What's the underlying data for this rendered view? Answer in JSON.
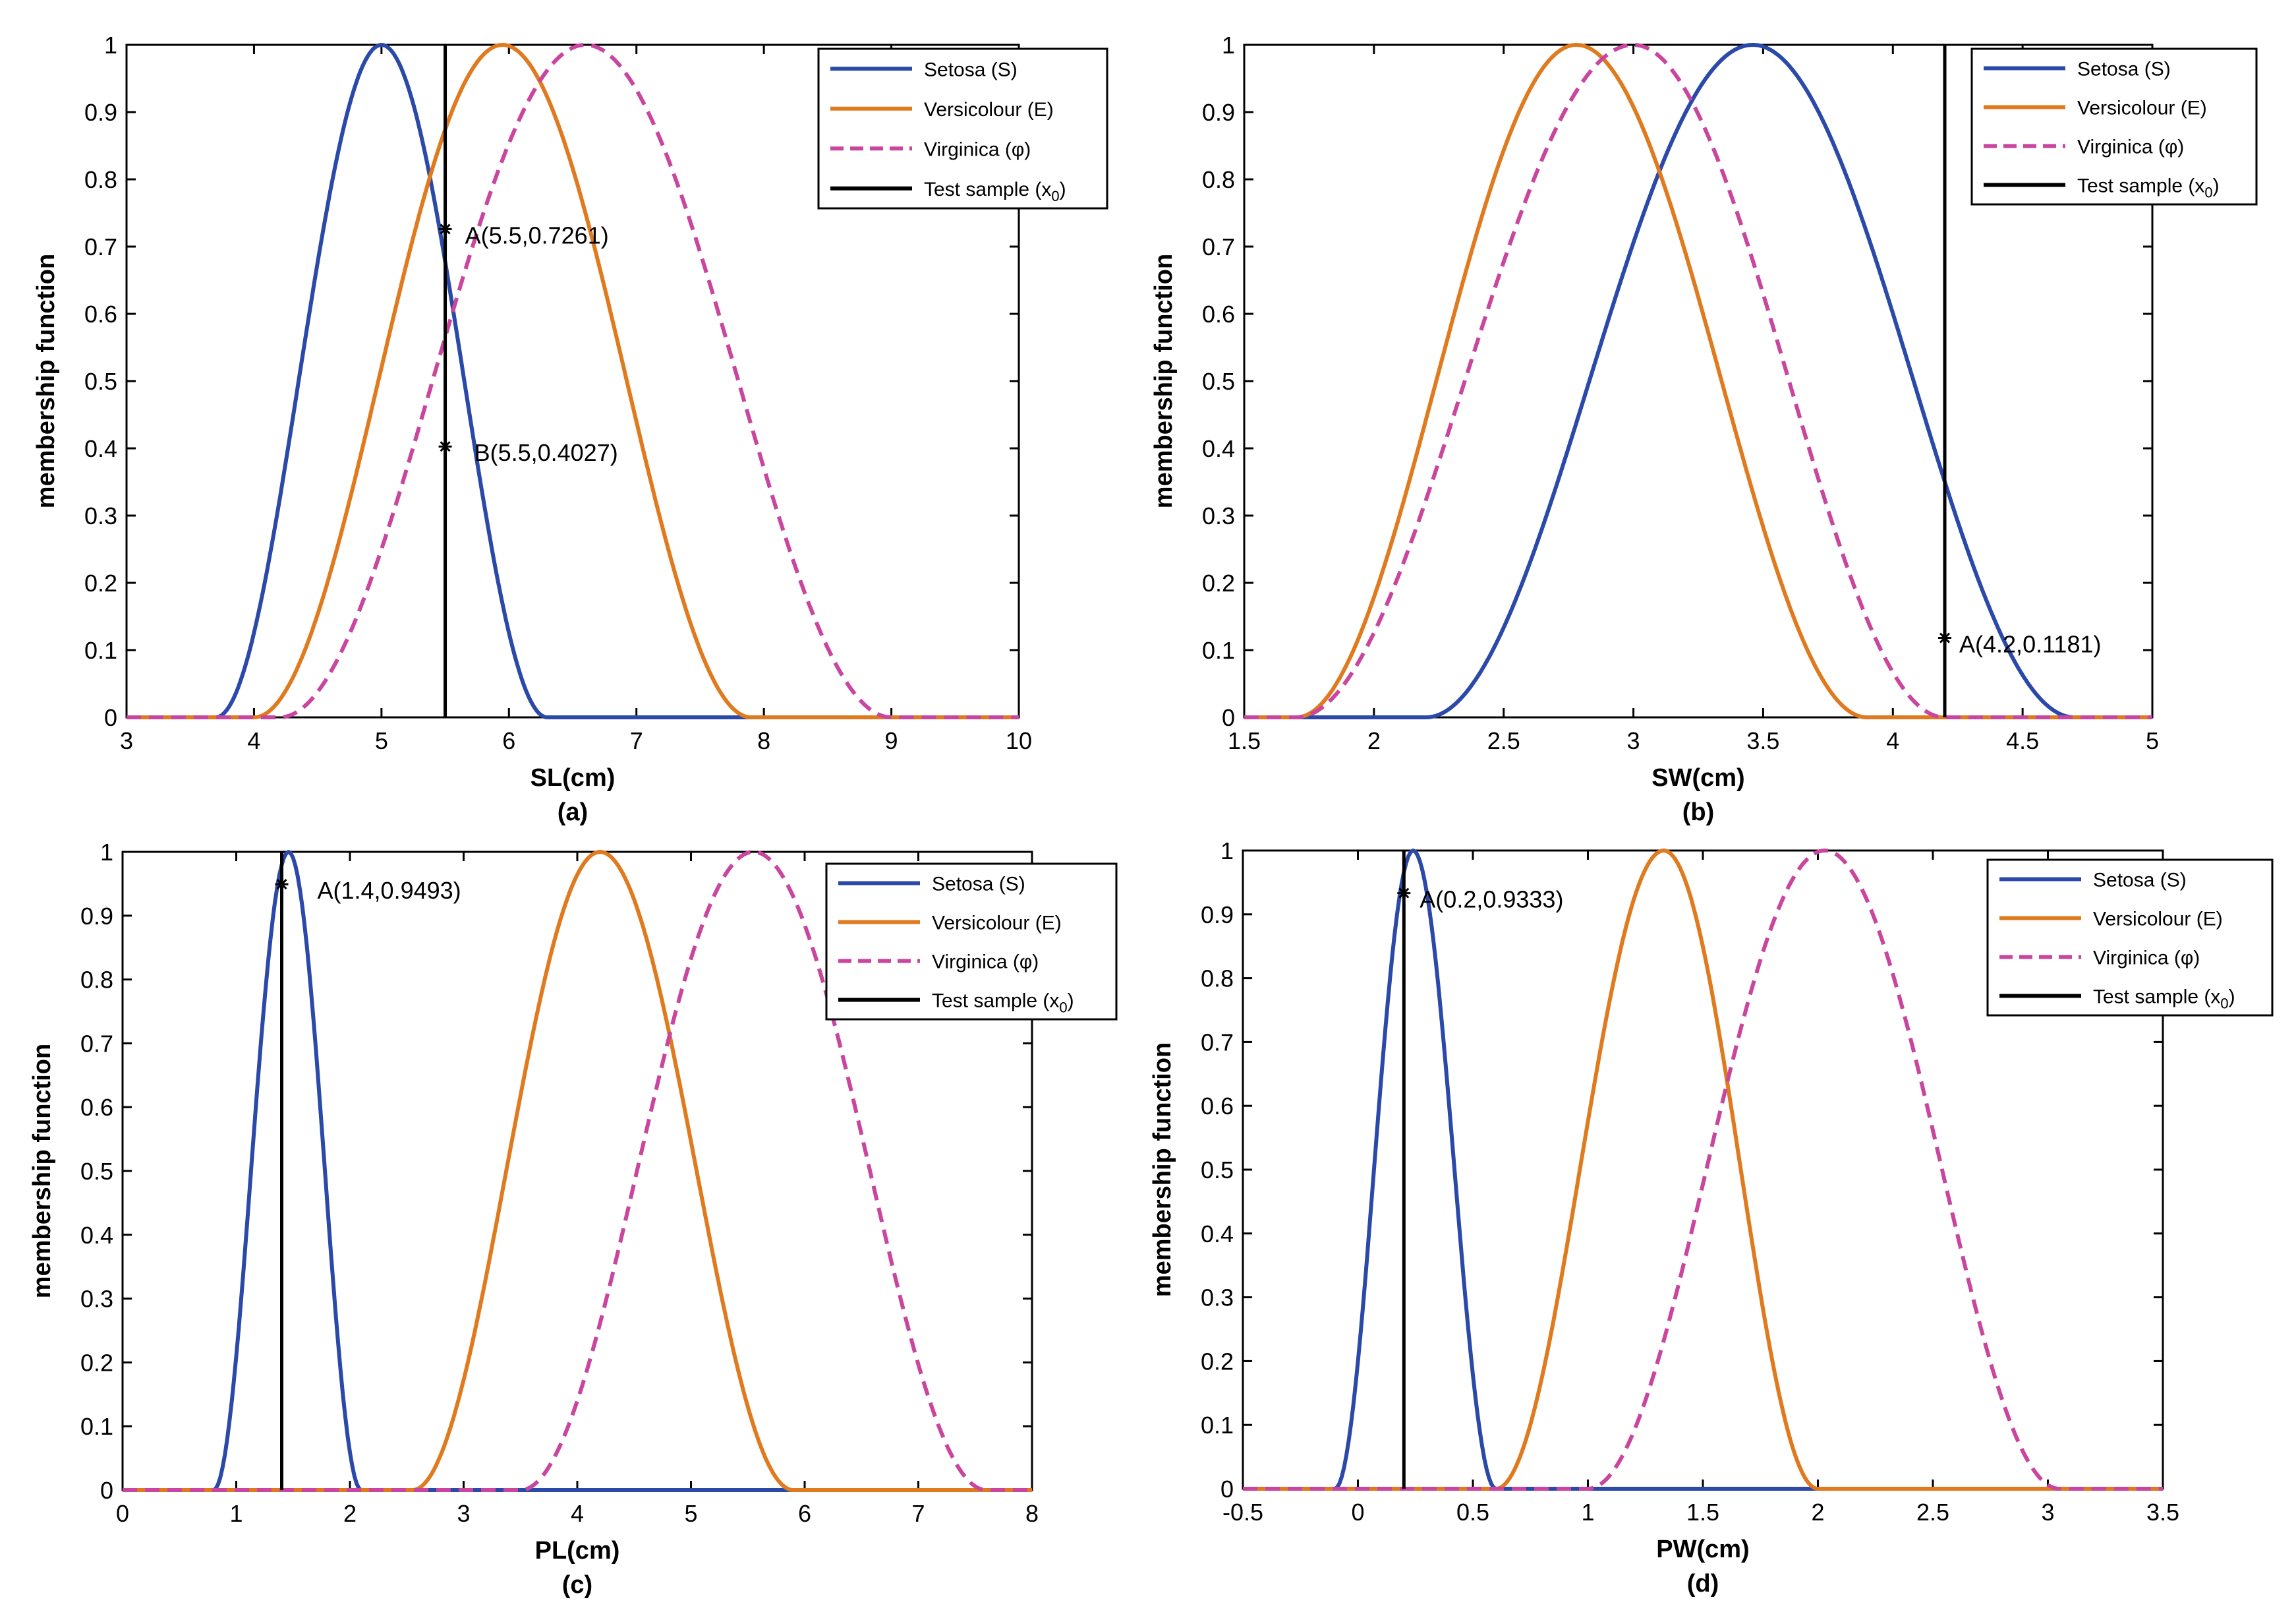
{
  "chart_data": [
    {
      "type": "line",
      "panel_label": "(a)",
      "xlabel": "SL(cm)",
      "ylabel": "membership function",
      "xlim": [
        3,
        10
      ],
      "ylim": [
        0,
        1
      ],
      "xticks": [
        "3",
        "4",
        "5",
        "6",
        "7",
        "8",
        "9",
        "10"
      ],
      "yticks": [
        "0",
        "0.1",
        "0.2",
        "0.3",
        "0.4",
        "0.5",
        "0.6",
        "0.7",
        "0.8",
        "0.9",
        "1"
      ],
      "legend_position": "top-right",
      "series": [
        {
          "name": "Setosa (S)",
          "color": "#2a49a8",
          "dash": "solid",
          "peak": 5.0,
          "support": [
            3.7,
            6.3
          ]
        },
        {
          "name": "Versicolour (E)",
          "color": "#e07a1f",
          "dash": "solid",
          "peak": 5.95,
          "support": [
            4.0,
            7.9
          ]
        },
        {
          "name": "Virginica (φ)",
          "color": "#c9459e",
          "dash": "dashed",
          "peak": 6.6,
          "support": [
            4.2,
            9.0
          ]
        }
      ],
      "test_sample": {
        "name": "Test sample (x0)",
        "x": 5.5,
        "color": "#000000"
      },
      "annotations": [
        {
          "text": "A(5.5,0.7261)",
          "x": 5.5,
          "y": 0.7261
        },
        {
          "text": "B(5.5,0.4027)",
          "x": 5.5,
          "y": 0.4027
        }
      ]
    },
    {
      "type": "line",
      "panel_label": "(b)",
      "xlabel": "SW(cm)",
      "ylabel": "membership function",
      "xlim": [
        1.5,
        5
      ],
      "ylim": [
        0,
        1
      ],
      "xticks": [
        "1.5",
        "2",
        "2.5",
        "3",
        "3.5",
        "4",
        "4.5",
        "5"
      ],
      "yticks": [
        "0",
        "0.1",
        "0.2",
        "0.3",
        "0.4",
        "0.5",
        "0.6",
        "0.7",
        "0.8",
        "0.9",
        "1"
      ],
      "legend_position": "top-right",
      "series": [
        {
          "name": "Setosa (S)",
          "color": "#2a49a8",
          "dash": "solid",
          "peak": 3.46,
          "support": [
            2.2,
            4.7
          ]
        },
        {
          "name": "Versicolour (E)",
          "color": "#e07a1f",
          "dash": "solid",
          "peak": 2.78,
          "support": [
            1.7,
            3.9
          ]
        },
        {
          "name": "Virginica (φ)",
          "color": "#c9459e",
          "dash": "dashed",
          "peak": 3.0,
          "support": [
            1.7,
            4.2
          ]
        }
      ],
      "test_sample": {
        "name": "Test sample (x0)",
        "x": 4.2,
        "color": "#000000"
      },
      "annotations": [
        {
          "text": "A(4.2,0.1181)",
          "x": 4.2,
          "y": 0.1181
        }
      ]
    },
    {
      "type": "line",
      "panel_label": "(c)",
      "xlabel": "PL(cm)",
      "ylabel": "membership function",
      "xlim": [
        0,
        8
      ],
      "ylim": [
        0,
        1
      ],
      "xticks": [
        "0",
        "1",
        "2",
        "3",
        "4",
        "5",
        "6",
        "7",
        "8"
      ],
      "yticks": [
        "0",
        "0.1",
        "0.2",
        "0.3",
        "0.4",
        "0.5",
        "0.6",
        "0.7",
        "0.8",
        "0.9",
        "1"
      ],
      "legend_position": "top-right",
      "series": [
        {
          "name": "Setosa (S)",
          "color": "#2a49a8",
          "dash": "solid",
          "peak": 1.46,
          "support": [
            0.8,
            2.1
          ]
        },
        {
          "name": "Versicolour (E)",
          "color": "#e07a1f",
          "dash": "solid",
          "peak": 4.2,
          "support": [
            2.55,
            5.9
          ]
        },
        {
          "name": "Virginica (φ)",
          "color": "#c9459e",
          "dash": "dashed",
          "peak": 5.55,
          "support": [
            3.5,
            7.6
          ]
        }
      ],
      "test_sample": {
        "name": "Test sample (x0)",
        "x": 1.4,
        "color": "#000000"
      },
      "annotations": [
        {
          "text": "A(1.4,0.9493)",
          "x": 1.4,
          "y": 0.9493
        }
      ]
    },
    {
      "type": "line",
      "panel_label": "(d)",
      "xlabel": "PW(cm)",
      "ylabel": "membership function",
      "xlim": [
        -0.5,
        3.5
      ],
      "ylim": [
        0,
        1
      ],
      "xticks": [
        "-0.5",
        "0",
        "0.5",
        "1",
        "1.5",
        "2",
        "2.5",
        "3",
        "3.5"
      ],
      "yticks": [
        "0",
        "0.1",
        "0.2",
        "0.3",
        "0.4",
        "0.5",
        "0.6",
        "0.7",
        "0.8",
        "0.9",
        "1"
      ],
      "legend_position": "top-right",
      "series": [
        {
          "name": "Setosa (S)",
          "color": "#2a49a8",
          "dash": "solid",
          "peak": 0.24,
          "support": [
            -0.1,
            0.6
          ]
        },
        {
          "name": "Versicolour (E)",
          "color": "#e07a1f",
          "dash": "solid",
          "peak": 1.33,
          "support": [
            0.6,
            2.0
          ]
        },
        {
          "name": "Virginica (φ)",
          "color": "#c9459e",
          "dash": "dashed",
          "peak": 2.03,
          "support": [
            1.0,
            3.05
          ]
        }
      ],
      "test_sample": {
        "name": "Test sample (x0)",
        "x": 0.2,
        "color": "#000000"
      },
      "annotations": [
        {
          "text": "A(0.2,0.9333)",
          "x": 0.2,
          "y": 0.9333
        }
      ]
    }
  ]
}
